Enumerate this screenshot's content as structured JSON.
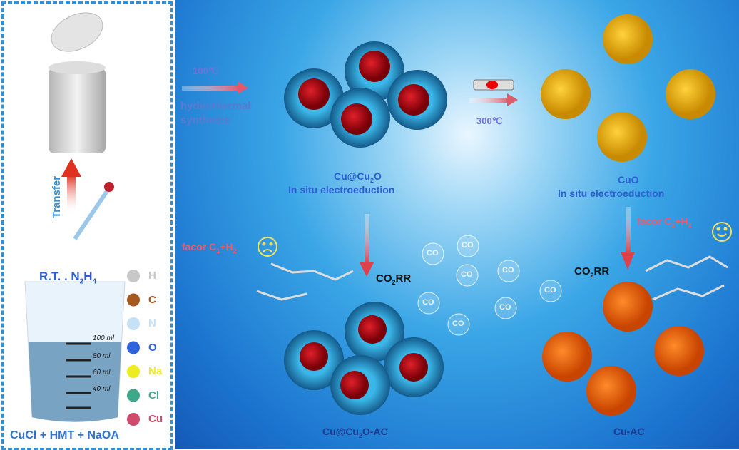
{
  "left_panel": {
    "transfer": "Transfer",
    "rt_label": "R.T. . N",
    "rt_sub": "2",
    "rt_h": "H",
    "rt_sub2": "4",
    "legend": [
      {
        "label": "H",
        "color": "#c8c8c8"
      },
      {
        "label": "C",
        "color": "#a5581f"
      },
      {
        "label": "N",
        "color": "#c6e0f6"
      },
      {
        "label": "O",
        "color": "#2f63de"
      },
      {
        "label": "Na",
        "color": "#ecec20"
      },
      {
        "label": "Cl",
        "color": "#3fa88a"
      },
      {
        "label": "Cu",
        "color": "#d04a6a"
      }
    ],
    "reagents": "CuCl + HMT + NaOA",
    "beaker_marks": [
      "100 ml",
      "80 ml",
      "60 ml",
      "40 ml"
    ]
  },
  "main": {
    "temp1": "100℃",
    "step1_line1": "hydeothermal",
    "step1_line2": "synthesis",
    "temp2": "300℃",
    "cu2o_label": "Cu@Cu",
    "cu2o_sub": "2",
    "cu2o_tail": "O",
    "cu2o_process": "In situ electroeduction",
    "cuo_label": "CuO",
    "cuo_process": "In situ electroeduction",
    "favor_left": "facor C",
    "favor_right": "facor C",
    "favor_sub1": "1",
    "favor_mid": "+H",
    "favor_sub2": "2",
    "co2rr": "CO",
    "co2rr_sub": "2",
    "co2rr_tail": "RR",
    "product_left": "Cu@Cu",
    "product_left_sub": "2",
    "product_left_tail": "O-AC",
    "product_right": "Cu-AC",
    "bubble": "CO"
  }
}
